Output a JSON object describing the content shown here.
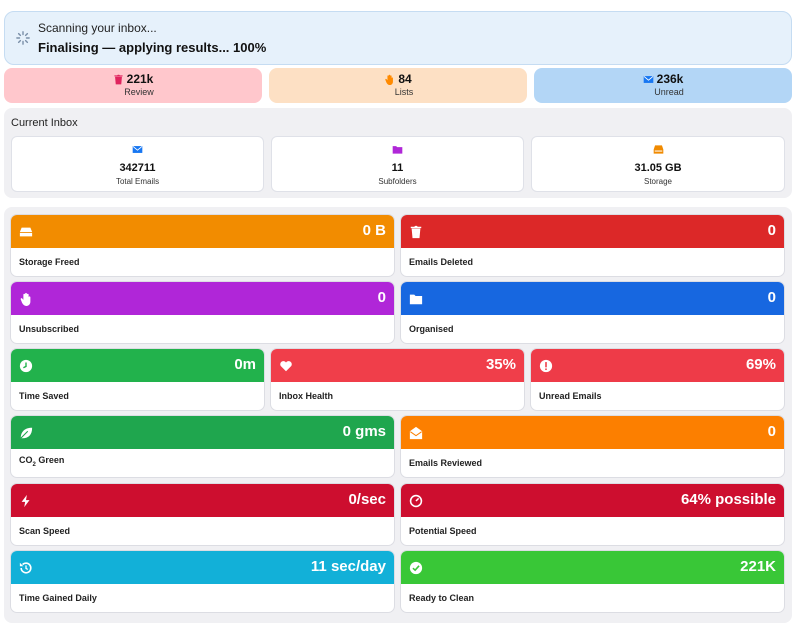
{
  "scan": {
    "title": "Scanning your inbox...",
    "status": "Finalising — applying results... 100%",
    "progress_percent": 100
  },
  "pills": [
    {
      "value": "221k",
      "label": "Review",
      "icon": "trash-icon",
      "bg": "#ffc7cc",
      "icon_color": "#e0245e"
    },
    {
      "value": "84",
      "label": "Lists",
      "icon": "hand-icon",
      "bg": "#fde0c4",
      "icon_color": "#ff8a00"
    },
    {
      "value": "236k",
      "label": "Unread",
      "icon": "envelope-icon",
      "bg": "#b3d6f6",
      "icon_color": "#1877f2"
    }
  ],
  "current_inbox": {
    "title": "Current Inbox",
    "cards": [
      {
        "value": "342711",
        "label": "Total Emails",
        "icon": "envelope-icon",
        "icon_color": "#1877f2"
      },
      {
        "value": "11",
        "label": "Subfolders",
        "icon": "folder-icon",
        "icon_color": "#b027d8"
      },
      {
        "value": "31.05 GB",
        "label": "Storage",
        "icon": "storage-icon",
        "icon_color": "#f08a00"
      }
    ]
  },
  "tiles": [
    {
      "label": "Storage Freed",
      "value": "0 B",
      "icon": "drive-icon",
      "color": "#f28c00"
    },
    {
      "label": "Emails Deleted",
      "value": "0",
      "icon": "trash-icon",
      "color": "#dc2828"
    },
    {
      "label": "Unsubscribed",
      "value": "0",
      "icon": "hand-icon",
      "color": "#b026d8"
    },
    {
      "label": "Organised",
      "value": "0",
      "icon": "folder-icon",
      "color": "#1767e0"
    },
    {
      "label": "Time Saved",
      "value": "0m",
      "icon": "clock-icon",
      "color": "#22b24c"
    },
    {
      "label": "Inbox Health",
      "value": "35%",
      "icon": "heart-icon",
      "color": "#f03e4a"
    },
    {
      "label": "Unread Emails",
      "value": "69%",
      "icon": "alert-icon",
      "color": "#ee3b48"
    },
    {
      "label_main": "CO",
      "label_sub": "2",
      "label_tail": " Green",
      "value": "0 gms",
      "icon": "leaf-icon",
      "color": "#1fa64e"
    },
    {
      "label": "Emails Reviewed",
      "value": "0",
      "icon": "open-envelope-icon",
      "color": "#fc7f00"
    },
    {
      "label": "Scan Speed",
      "value": "0/sec",
      "icon": "bolt-icon",
      "color": "#cd0e2f"
    },
    {
      "label": "Potential Speed",
      "value": "64% possible",
      "icon": "gauge-icon",
      "color": "#cd0e2f"
    },
    {
      "label": "Time Gained Daily",
      "value": "11 sec/day",
      "icon": "history-icon",
      "color": "#12b0d8"
    },
    {
      "label": "Ready to Clean",
      "value": "221K",
      "icon": "check-circle-icon",
      "color": "#39c737"
    }
  ]
}
